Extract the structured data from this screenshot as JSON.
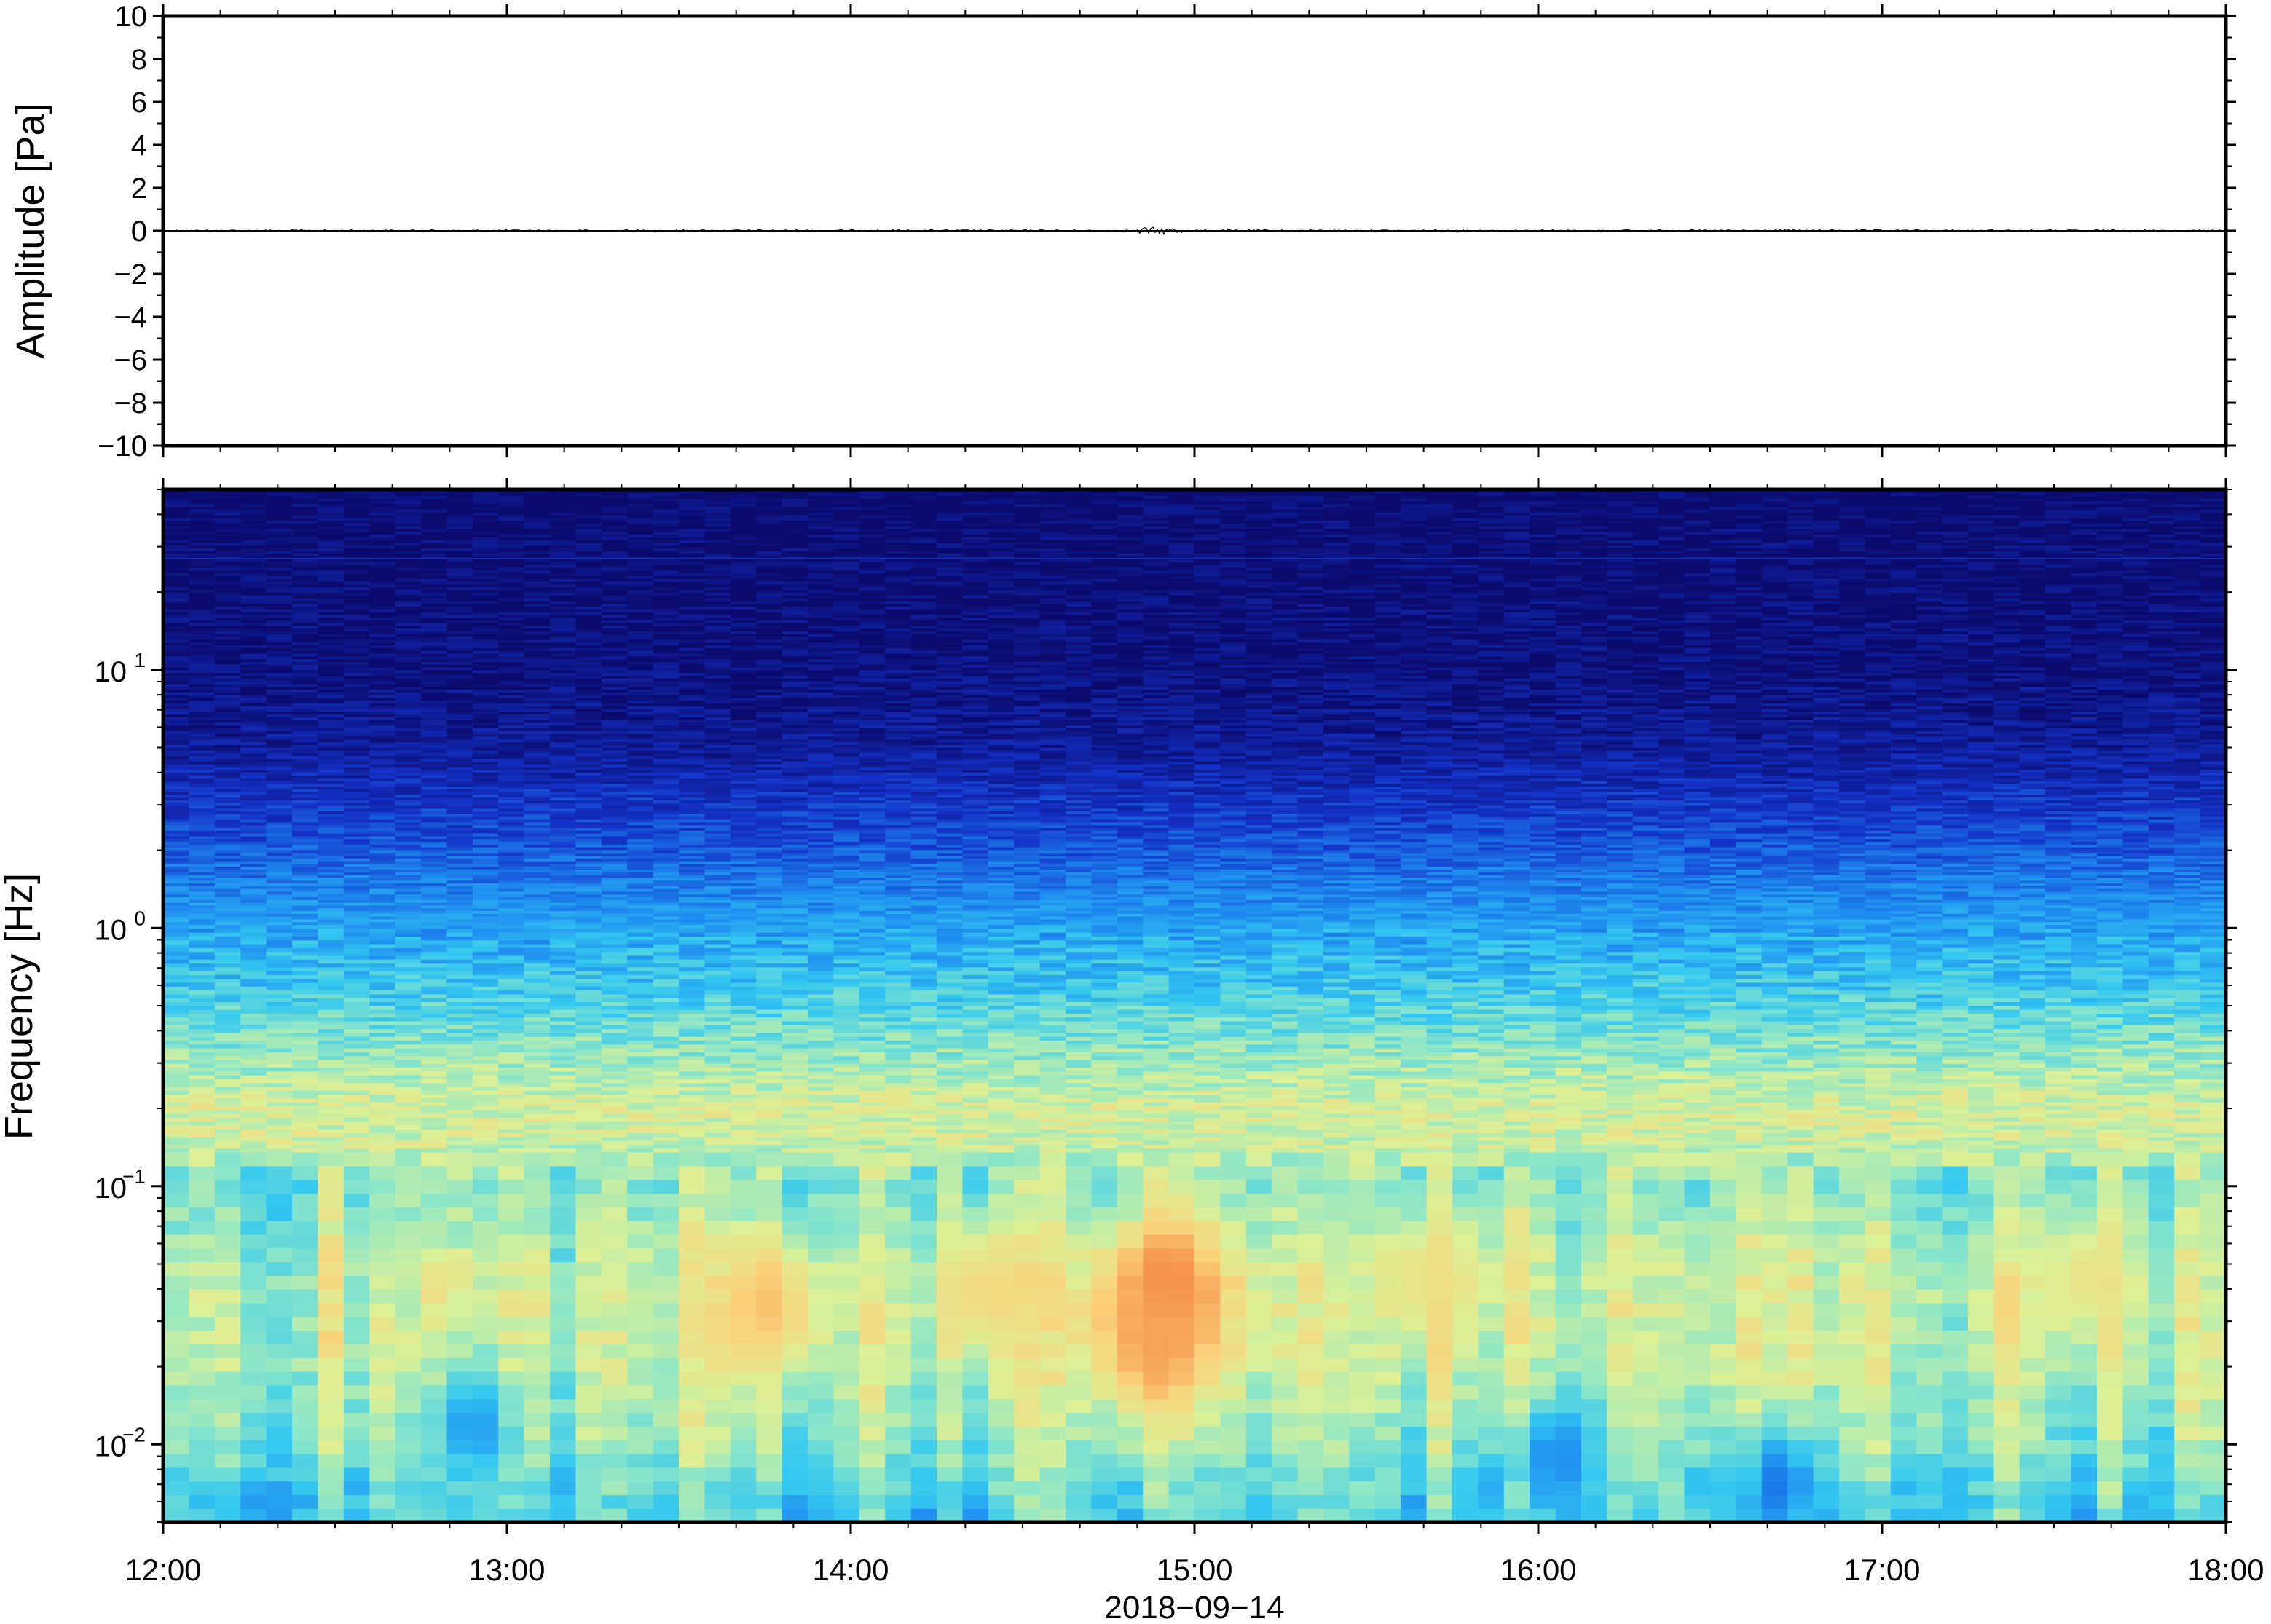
{
  "chart_data": [
    {
      "type": "line",
      "panel": "waveform",
      "ylabel": "Amplitude [Pa]",
      "ylim": [
        -10,
        10
      ],
      "yticks": [
        10,
        8,
        6,
        4,
        2,
        0,
        -2,
        -4,
        -6,
        -8,
        -10
      ],
      "ytick_labels": [
        "10",
        "8",
        "6",
        "4",
        "2",
        "0",
        "−2",
        "−4",
        "−6",
        "−8",
        "−10"
      ],
      "x_range": [
        "12:00",
        "18:00"
      ],
      "series_description_values": [
        0,
        0
      ],
      "line_color": "#000000"
    },
    {
      "type": "heatmap",
      "panel": "spectrogram",
      "ylabel": "Frequency [Hz]",
      "yscale": "log",
      "ylim": [
        0.005,
        50
      ],
      "yticks": [
        0.01,
        0.1,
        1,
        10
      ],
      "ytick_labels": [
        {
          "base": "10",
          "exp": "−2"
        },
        {
          "base": "10",
          "exp": "−1"
        },
        {
          "base": "10",
          "exp": "0"
        },
        {
          "base": "10",
          "exp": "1"
        }
      ],
      "xlabel": "2018−09−14",
      "xticks": [
        "12:00",
        "13:00",
        "14:00",
        "15:00",
        "16:00",
        "17:00",
        "18:00"
      ],
      "xlim_hours": [
        12,
        18
      ],
      "colormap": [
        "#0b0b6e",
        "#1432c8",
        "#1e8cf0",
        "#34c8f0",
        "#8ce6c8",
        "#dcf096",
        "#fad27a",
        "#f59650",
        "#e8643c"
      ],
      "power_profile": [
        {
          "freq": 0.006,
          "level": 0.42
        },
        {
          "freq": 0.01,
          "level": 0.52
        },
        {
          "freq": 0.02,
          "level": 0.58
        },
        {
          "freq": 0.04,
          "level": 0.6
        },
        {
          "freq": 0.1,
          "level": 0.5
        },
        {
          "freq": 0.15,
          "level": 0.6
        },
        {
          "freq": 0.2,
          "level": 0.62
        },
        {
          "freq": 0.35,
          "level": 0.5
        },
        {
          "freq": 0.6,
          "level": 0.38
        },
        {
          "freq": 1,
          "level": 0.3
        },
        {
          "freq": 2,
          "level": 0.18
        },
        {
          "freq": 5,
          "level": 0.06
        },
        {
          "freq": 10,
          "level": 0.02
        },
        {
          "freq": 50,
          "level": 0.0
        }
      ],
      "hotspots": [
        {
          "time_h": 13.75,
          "freq": 0.035,
          "level": 0.78
        },
        {
          "time_h": 14.4,
          "freq": 0.04,
          "level": 0.72
        },
        {
          "time_h": 14.92,
          "freq": 0.04,
          "level": 0.92
        },
        {
          "time_h": 14.88,
          "freq": 0.025,
          "level": 0.85
        },
        {
          "time_h": 15.7,
          "freq": 0.045,
          "level": 0.7
        },
        {
          "time_h": 17.6,
          "freq": 0.045,
          "level": 0.68
        }
      ],
      "low_spots": [
        {
          "time_h": 12.9,
          "freq": 0.012,
          "level": 0.28
        },
        {
          "time_h": 16.05,
          "freq": 0.009,
          "level": 0.25
        },
        {
          "time_h": 16.7,
          "freq": 0.007,
          "level": 0.22
        }
      ]
    }
  ]
}
